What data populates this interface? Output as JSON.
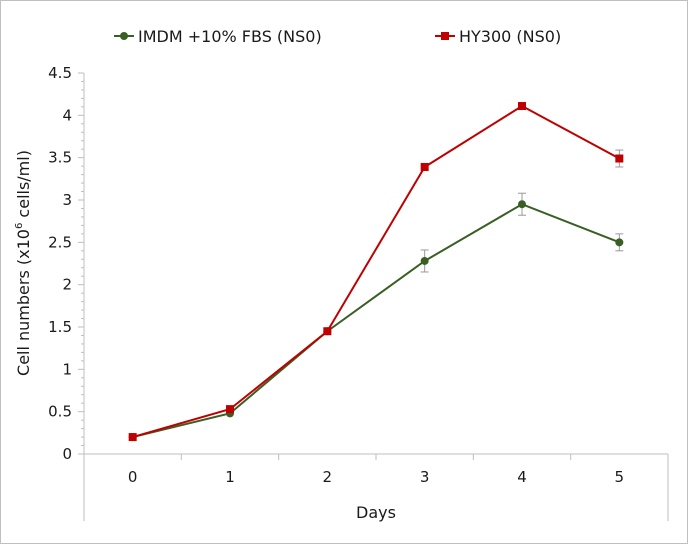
{
  "chart_data": {
    "type": "line",
    "title": "",
    "xlabel": "Days",
    "ylabel_main": "Cell numbers (x10",
    "ylabel_sup": "6",
    "ylabel_tail": " cells/ml)",
    "ylim": [
      0,
      4.5
    ],
    "y_ticks": [
      "0",
      "0.5",
      "1",
      "1.5",
      "2",
      "2.5",
      "3",
      "3.5",
      "4",
      "4.5"
    ],
    "categories": [
      "0",
      "1",
      "2",
      "3",
      "4",
      "5"
    ],
    "legend_position": "top",
    "grid": false,
    "series": [
      {
        "name": "IMDM +10% FBS (NS0)",
        "marker": "circle",
        "color": "#3a5f24",
        "values": [
          0.2,
          0.48,
          1.45,
          2.28,
          2.95,
          2.5
        ],
        "error": [
          0,
          0,
          0,
          0.13,
          0.13,
          0.1
        ]
      },
      {
        "name": "HY300 (NS0)",
        "marker": "square",
        "color": "#c00000",
        "values": [
          0.2,
          0.53,
          1.45,
          3.39,
          4.11,
          3.49
        ],
        "error": [
          0,
          0,
          0,
          0,
          0,
          0.1
        ]
      }
    ]
  }
}
